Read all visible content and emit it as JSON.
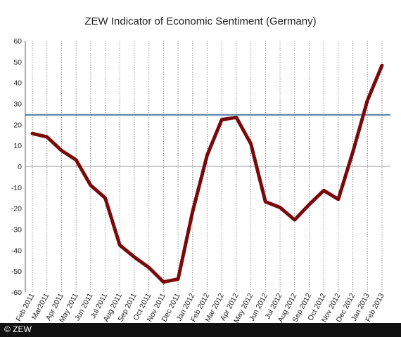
{
  "colors": {
    "series": "#7a0a0a",
    "reference_line": "#2a5a8c",
    "zero_line": "#9a9a9a",
    "grid": "#666666",
    "footer": "#111111"
  },
  "footer": {
    "copyright": "© ZEW"
  },
  "chart_data": {
    "type": "line",
    "title": "ZEW Indicator of Economic Sentiment (Germany)",
    "xlabel": "",
    "ylabel": "",
    "ylim": [
      -60,
      60
    ],
    "yticks": [
      -60,
      -50,
      -40,
      -30,
      -20,
      -10,
      0,
      10,
      20,
      30,
      40,
      50,
      60
    ],
    "grid": "vertical dotted",
    "categories": [
      "Feb 2011",
      "Mar2011",
      "Apr 2011",
      "May 2011",
      "Jun 2011",
      "Jul 2011",
      "Aug 2011",
      "Sep 2011",
      "Oct 2011",
      "Nov 2011",
      "Dec 2011",
      "Jan 2012",
      "Feb 2012",
      "Mar 2012",
      "Apr 2012",
      "May 2012",
      "Jun 2012",
      "Jul 2012",
      "Aug 2012",
      "Sep 2012",
      "Oct 2012",
      "Nov 2012",
      "Dec 2012",
      "Jan 2013",
      "Feb 2013"
    ],
    "series": [
      {
        "values": [
          15.7,
          14.1,
          7.6,
          3.1,
          -9.0,
          -15.1,
          -37.6,
          -43.3,
          -48.3,
          -55.2,
          -53.8,
          -21.6,
          5.4,
          22.3,
          23.4,
          10.8,
          -16.9,
          -19.6,
          -25.5,
          -18.2,
          -11.5,
          -15.7,
          6.9,
          31.5,
          48.2
        ]
      }
    ],
    "reference_line": {
      "value": 24.6
    }
  }
}
